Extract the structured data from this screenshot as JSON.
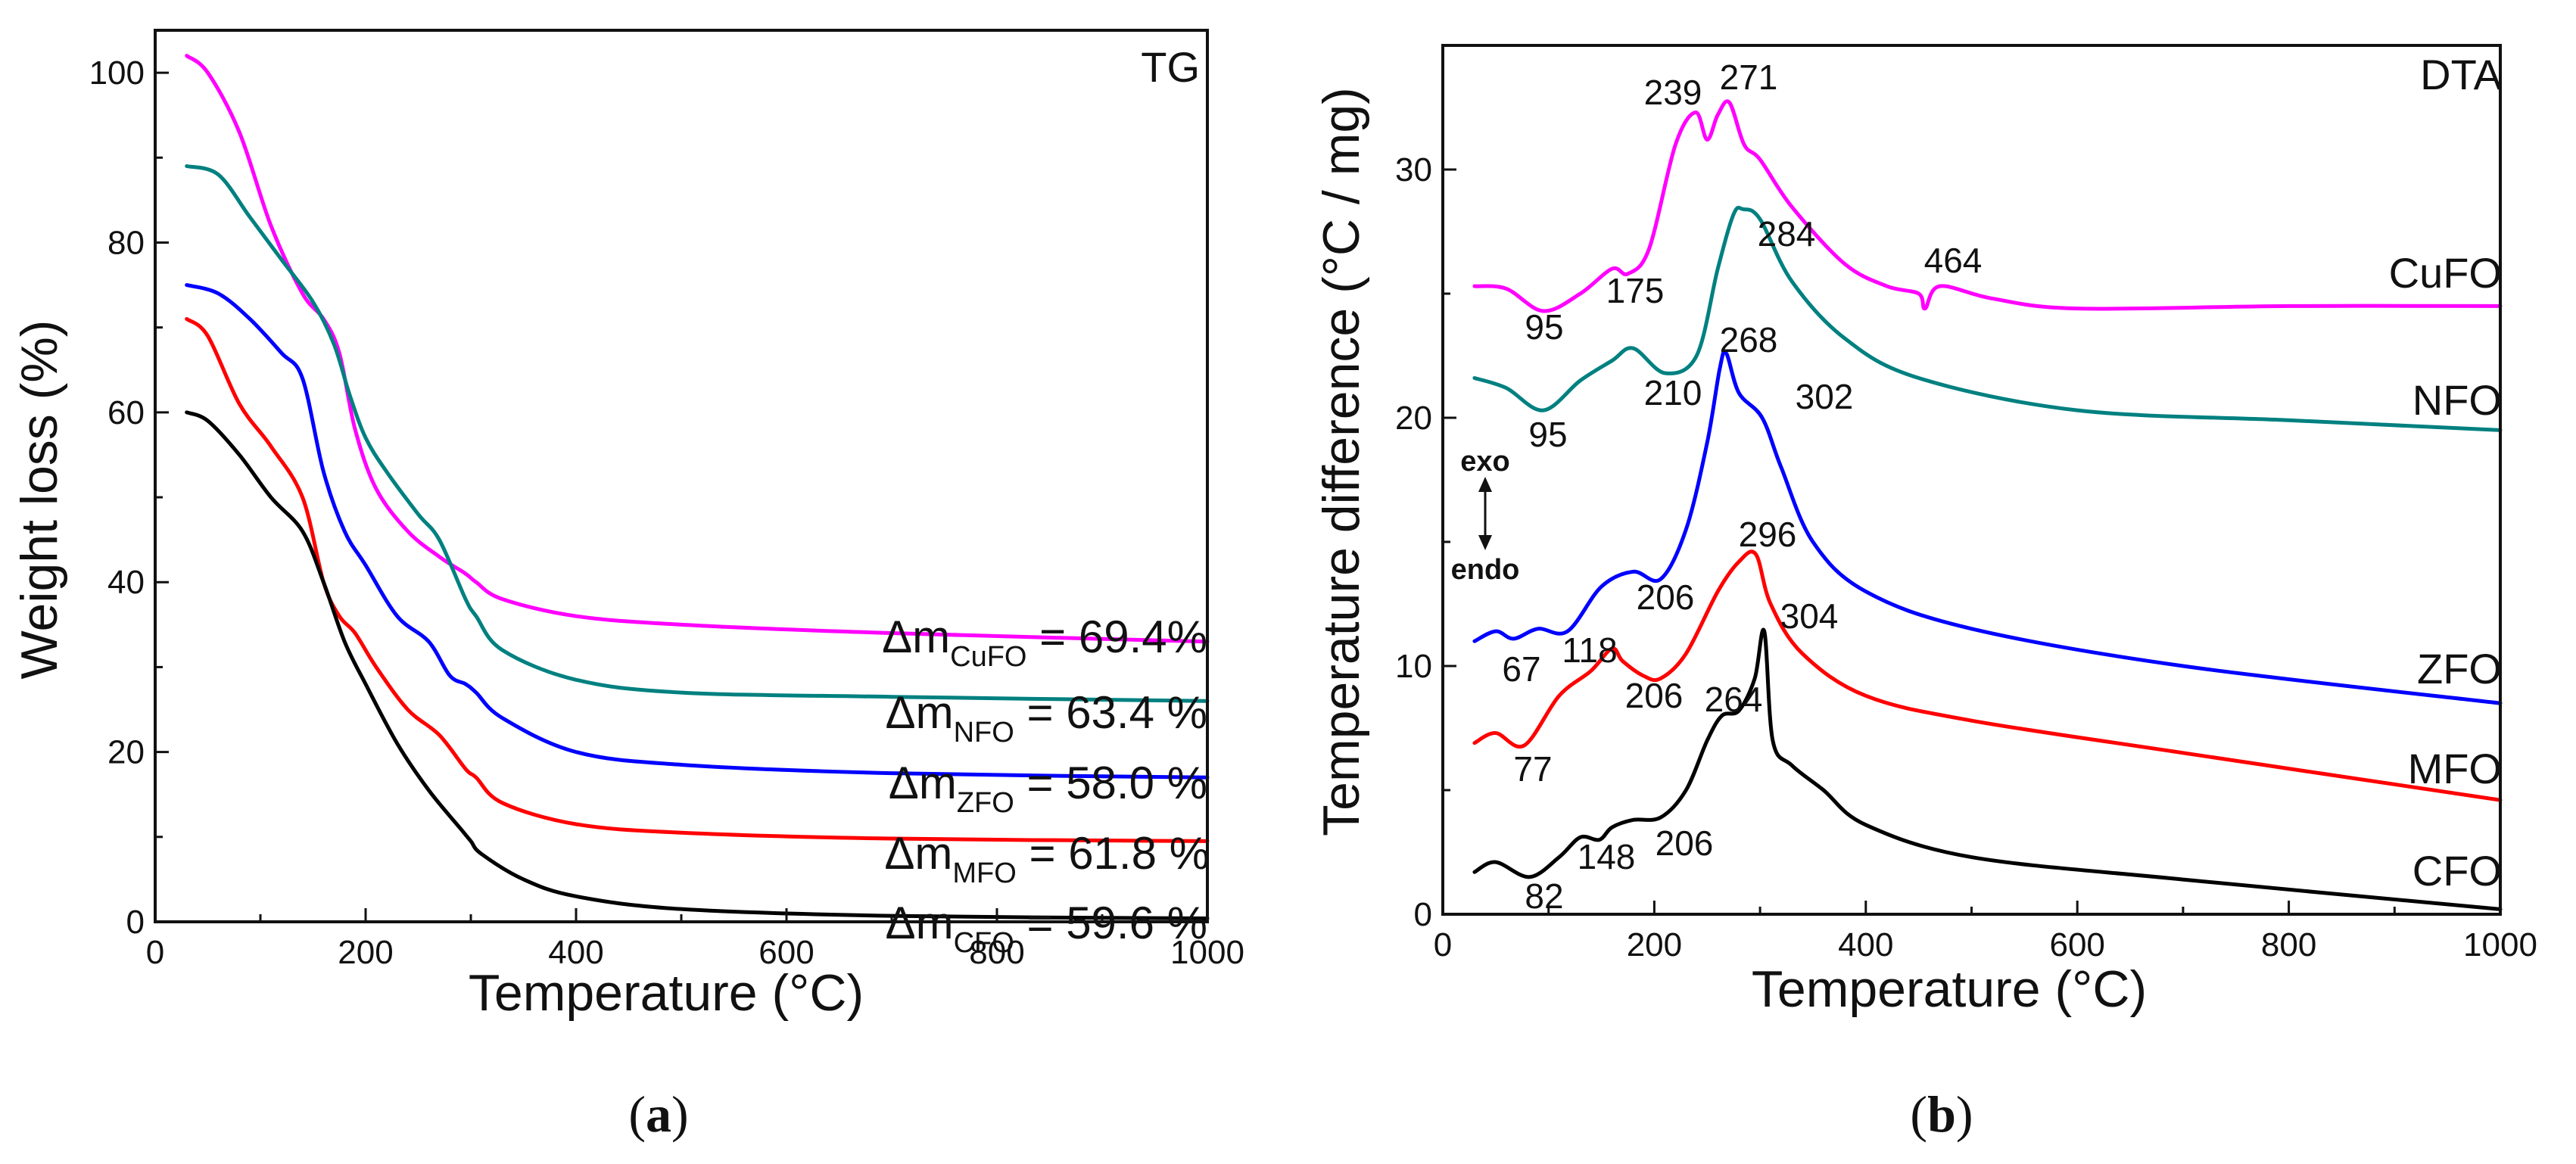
{
  "chart_data": [
    {
      "type": "line",
      "panel_label": "a",
      "title": "TG",
      "xlabel": "Temperature (°C)",
      "ylabel": "Weight loss (%)",
      "xlim": [
        0,
        1000
      ],
      "ylim": [
        0,
        105
      ],
      "xticks": [
        0,
        200,
        400,
        600,
        800,
        1000
      ],
      "yticks": [
        0,
        20,
        40,
        60,
        80,
        100
      ],
      "series": [
        {
          "name": "CuFO",
          "color": "#ff00ff",
          "x": [
            30,
            50,
            80,
            110,
            140,
            160,
            175,
            190,
            210,
            240,
            270,
            295,
            305,
            330,
            400,
            500,
            700,
            1000
          ],
          "y": [
            102,
            100,
            93,
            82,
            74,
            71,
            67,
            58,
            51,
            46,
            43,
            41,
            40,
            38,
            36,
            35,
            34,
            33
          ]
        },
        {
          "name": "NFO",
          "color": "#008080",
          "x": [
            30,
            60,
            90,
            120,
            150,
            170,
            185,
            200,
            220,
            250,
            270,
            295,
            305,
            330,
            400,
            500,
            700,
            1000
          ],
          "y": [
            89,
            88,
            83,
            78,
            73,
            68,
            62,
            57,
            53,
            48,
            45,
            38,
            36,
            32,
            28.5,
            27,
            26.5,
            26
          ]
        },
        {
          "name": "ZFO",
          "color": "#0000ff",
          "x": [
            30,
            60,
            90,
            120,
            140,
            160,
            180,
            200,
            230,
            260,
            280,
            295,
            305,
            330,
            400,
            500,
            700,
            1000
          ],
          "y": [
            75,
            74,
            71,
            67,
            64,
            53,
            46,
            42,
            36,
            33,
            29,
            28,
            27,
            24,
            20,
            18.5,
            17.5,
            17
          ]
        },
        {
          "name": "MFO",
          "color": "#ff0000",
          "x": [
            30,
            50,
            80,
            110,
            140,
            160,
            175,
            190,
            210,
            240,
            270,
            295,
            305,
            330,
            400,
            500,
            700,
            1000
          ],
          "y": [
            71,
            69,
            61,
            56,
            50,
            40,
            36,
            34,
            30,
            25,
            22,
            18,
            17,
            14,
            11.5,
            10.5,
            9.8,
            9.5
          ]
        },
        {
          "name": "CFO",
          "color": "#000000",
          "x": [
            30,
            50,
            80,
            110,
            140,
            160,
            180,
            200,
            230,
            260,
            290,
            300,
            310,
            350,
            400,
            500,
            700,
            1000
          ],
          "y": [
            60,
            59,
            55,
            50,
            46,
            40,
            33,
            28,
            21,
            15.5,
            11,
            9.5,
            8,
            5,
            3,
            1.5,
            0.7,
            0.4
          ]
        }
      ],
      "annotations": [
        {
          "name": "cufo",
          "prefix": "Δm",
          "sub": "CuFO",
          "suffix": " = 69.4%"
        },
        {
          "name": "nfo",
          "prefix": "Δm",
          "sub": "NFO",
          "suffix": " = 63.4 %"
        },
        {
          "name": "zfo",
          "prefix": "Δm",
          "sub": "ZFO",
          "suffix": " = 58.0 %"
        },
        {
          "name": "mfo",
          "prefix": "Δm",
          "sub": "MFO",
          "suffix": " = 61.8 %"
        },
        {
          "name": "cfo",
          "prefix": "Δm",
          "sub": "CFO",
          "suffix": " = 59.6 %"
        }
      ]
    },
    {
      "type": "line",
      "panel_label": "b",
      "title": "DTA",
      "xlabel": "Temperature (°C)",
      "ylabel": "Temperature difference (°C / mg)",
      "xlim": [
        0,
        1000
      ],
      "ylim": [
        0,
        35
      ],
      "xticks": [
        0,
        200,
        400,
        600,
        800,
        1000
      ],
      "yticks": [
        0,
        10,
        20,
        30
      ],
      "direction_labels": {
        "exo": "exo",
        "endo": "endo"
      },
      "series": [
        {
          "name": "CuFO",
          "color": "#ff00ff",
          "x": [
            30,
            60,
            95,
            130,
            160,
            175,
            195,
            220,
            239,
            250,
            260,
            271,
            285,
            300,
            330,
            380,
            420,
            450,
            456,
            470,
            520,
            600,
            800,
            1000
          ],
          "y": [
            25.3,
            25.2,
            24.3,
            25,
            26,
            25.8,
            26.8,
            31,
            32.3,
            31.2,
            32.2,
            32.7,
            31,
            30.4,
            28.5,
            26.2,
            25.3,
            25,
            24.4,
            25.3,
            24.8,
            24.4,
            24.5,
            24.5
          ],
          "label": "CuFO",
          "peaks": [
            "95",
            "175",
            "239",
            "271",
            "464"
          ]
        },
        {
          "name": "NFO",
          "color": "#008080",
          "x": [
            30,
            60,
            95,
            130,
            160,
            180,
            210,
            240,
            260,
            275,
            284,
            300,
            330,
            380,
            450,
            600,
            800,
            1000
          ],
          "y": [
            21.6,
            21.2,
            20.3,
            21.5,
            22.3,
            22.8,
            21.8,
            22.5,
            26,
            28.2,
            28.4,
            28,
            25.5,
            23.2,
            21.6,
            20.3,
            19.9,
            19.5
          ],
          "label": "NFO",
          "peaks": [
            "95",
            "210",
            "284"
          ]
        },
        {
          "name": "ZFO",
          "color": "#0000ff",
          "x": [
            30,
            50,
            67,
            90,
            118,
            150,
            180,
            206,
            230,
            250,
            262,
            268,
            280,
            302,
            320,
            350,
            400,
            500,
            700,
            1000
          ],
          "y": [
            11,
            11.4,
            11.1,
            11.5,
            11.4,
            13.2,
            13.8,
            13.5,
            15.5,
            19,
            22,
            22.6,
            21,
            20,
            18,
            15,
            13,
            11.5,
            10,
            8.5
          ],
          "label": "ZFO",
          "peaks": [
            "67",
            "118",
            "206",
            "268",
            "302"
          ]
        },
        {
          "name": "MFO",
          "color": "#ff0000",
          "x": [
            30,
            50,
            77,
            110,
            140,
            160,
            170,
            190,
            206,
            230,
            260,
            280,
            296,
            310,
            340,
            400,
            500,
            700,
            1000
          ],
          "y": [
            6.9,
            7.3,
            6.8,
            8.8,
            9.8,
            10.7,
            10.2,
            9.6,
            9.5,
            10.5,
            13,
            14.2,
            14.5,
            12.5,
            10.5,
            8.8,
            7.8,
            6.5,
            4.6
          ],
          "label": "MFO",
          "peaks": [
            "77",
            "118",
            "206",
            "296"
          ]
        },
        {
          "name": "CFO",
          "color": "#000000",
          "x": [
            30,
            50,
            82,
            110,
            130,
            148,
            160,
            180,
            206,
            230,
            250,
            264,
            280,
            295,
            304,
            312,
            330,
            360,
            400,
            500,
            700,
            1000
          ],
          "y": [
            1.7,
            2.1,
            1.5,
            2.3,
            3.1,
            3.0,
            3.5,
            3.8,
            3.9,
            5,
            7,
            8,
            8.2,
            9.5,
            11.4,
            7,
            6,
            5,
            3.6,
            2.3,
            1.4,
            0.2
          ],
          "label": "CFO",
          "peaks": [
            "82",
            "148",
            "206",
            "264",
            "304"
          ]
        }
      ]
    }
  ]
}
